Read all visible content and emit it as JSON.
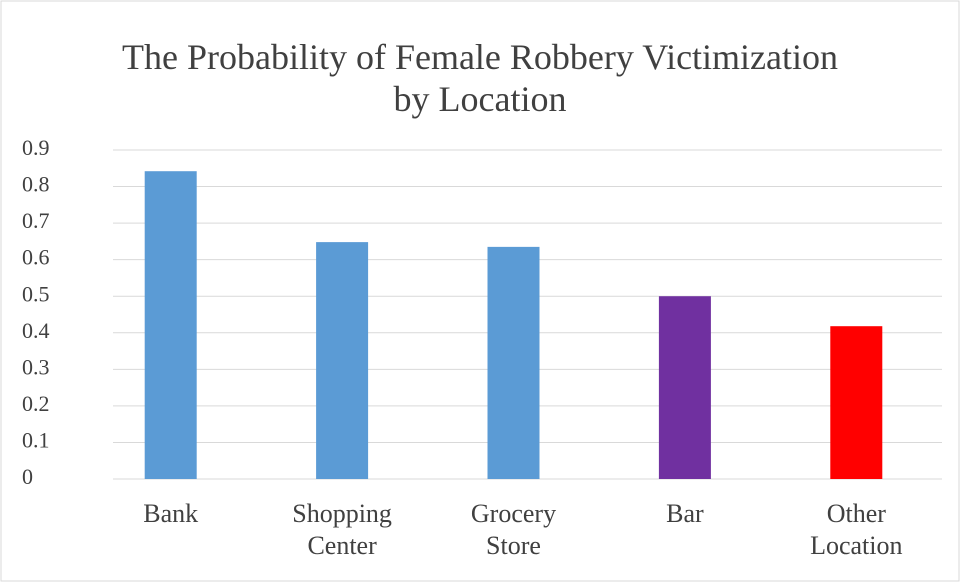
{
  "chart_data": {
    "type": "bar",
    "title": "The Probability of Female Robbery Victimization by Location",
    "categories": [
      "Bank",
      "Shopping Center",
      "Grocery Store",
      "Bar",
      "Other Location"
    ],
    "values": [
      0.842,
      0.648,
      0.635,
      0.5,
      0.418
    ],
    "colors": [
      "#5b9bd5",
      "#5b9bd5",
      "#5b9bd5",
      "#7030a0",
      "#ff0000"
    ],
    "ylim": [
      0,
      0.9
    ],
    "yticks": [
      0,
      0.1,
      0.2,
      0.3,
      0.4,
      0.5,
      0.6,
      0.7,
      0.8,
      0.9
    ],
    "grid": true
  }
}
